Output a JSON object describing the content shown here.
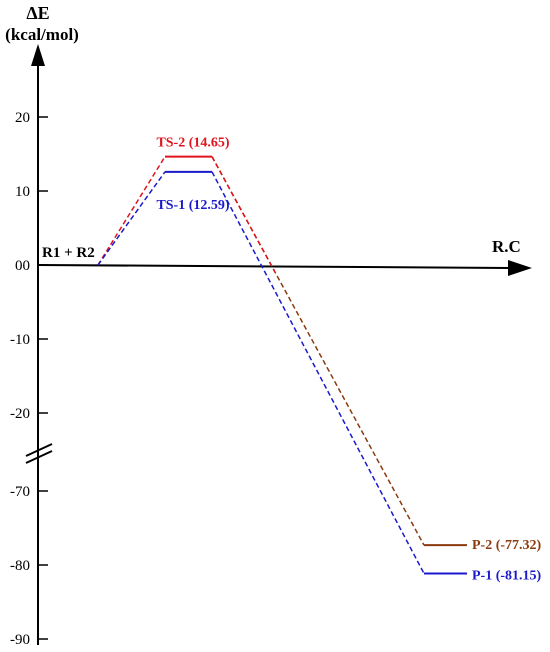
{
  "chart_data": {
    "type": "line",
    "axis": {
      "y_title_line1": "ΔE",
      "y_title_line2": "(kcal/mol)",
      "x_title": "R.C"
    },
    "y_ticks_upper": [
      {
        "value": 20,
        "label": "20"
      },
      {
        "value": 10,
        "label": "10"
      },
      {
        "value": 0,
        "label": "00"
      },
      {
        "value": -10,
        "label": "-10"
      },
      {
        "value": -20,
        "label": "-20"
      }
    ],
    "y_ticks_lower": [
      {
        "value": -70,
        "label": "-70"
      },
      {
        "value": -80,
        "label": "-80"
      },
      {
        "value": -90,
        "label": "-90"
      }
    ],
    "axis_break": {
      "from": -20,
      "to": -70
    },
    "reactant": {
      "label": "R1 + R2",
      "value": 0
    },
    "pathways": [
      {
        "color": "#1a1acc",
        "ts_label": "TS-1 (12.59)",
        "ts_value": 12.59,
        "p_label": "P-1 (-81.15)",
        "p_value": -81.15
      },
      {
        "color": "#e0141e",
        "ts_label": "TS-2 (14.65)",
        "ts_value": 14.65,
        "p_color": "#8b3a0f",
        "p_label": "P-2 (-77.32)",
        "p_value": -77.32
      }
    ]
  }
}
